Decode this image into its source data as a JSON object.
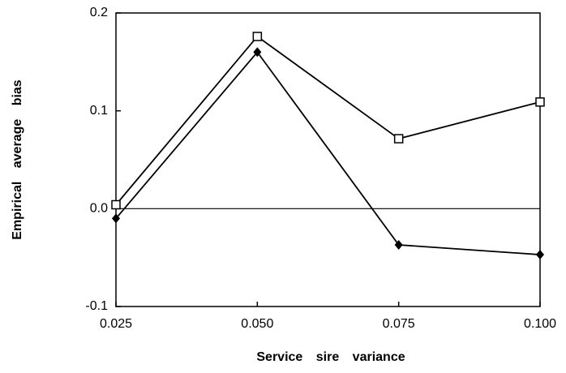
{
  "chart_data": {
    "type": "line",
    "x_label": "Service sire variance",
    "y_label": "Empirical average bias",
    "x": [
      0.025,
      0.05,
      0.075,
      0.1
    ],
    "series": [
      {
        "color": "#000000",
        "marker": "square-open",
        "values": [
          0.004,
          0.176,
          0.0715,
          0.109
        ]
      },
      {
        "color": "#000000",
        "marker": "diamond",
        "values": [
          -0.01,
          0.16,
          -0.037,
          -0.047
        ]
      }
    ],
    "xlim": [
      0.025,
      0.1
    ],
    "xticks": [
      0.025,
      {
        "value": 0.05,
        "label": "0.050"
      },
      0.075,
      {
        "value": 0.1,
        "label": "0.100"
      }
    ],
    "ylim": [
      -0.1,
      0.2
    ],
    "yticks": [
      -0.1,
      {
        "value": 0,
        "label": "0.0"
      },
      0.1,
      0.2
    ]
  }
}
